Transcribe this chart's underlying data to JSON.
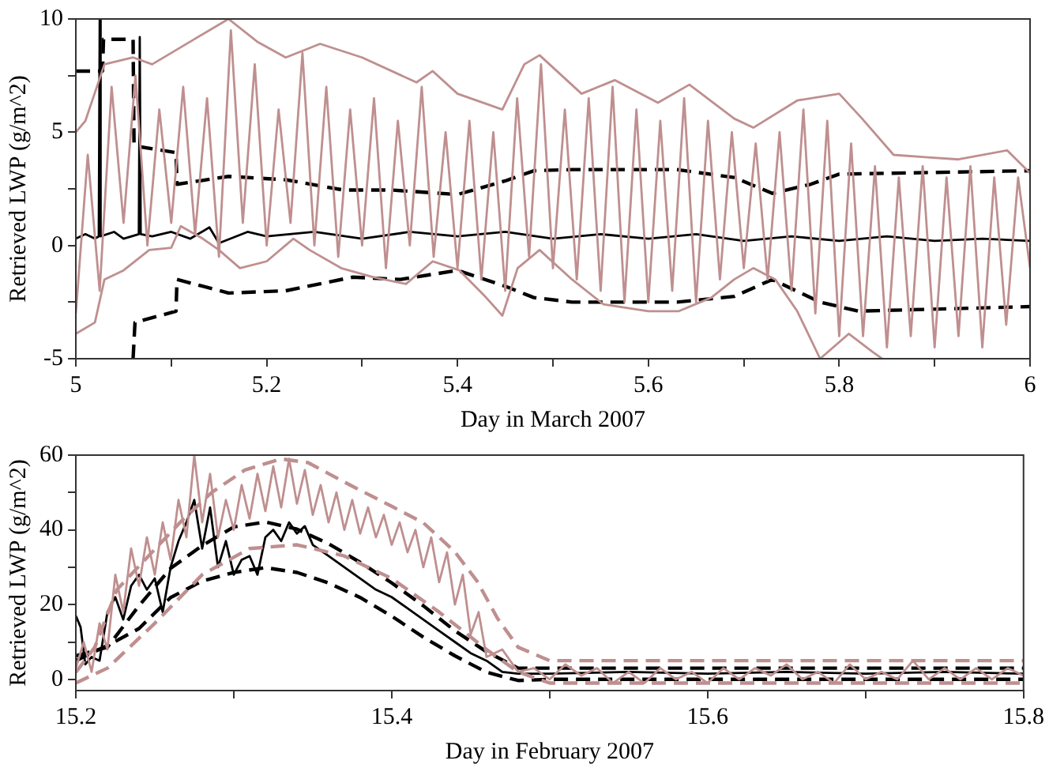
{
  "chart_data": [
    {
      "type": "line",
      "xlabel": "Day in March 2007",
      "ylabel": "Retrieved LWP (g/m^2)",
      "xlim": [
        5,
        6
      ],
      "ylim": [
        -5,
        10
      ],
      "xticks": [
        5,
        {
          "value": 5.1,
          "label": null
        },
        5.2,
        {
          "value": 5.3,
          "label": null
        },
        5.4,
        {
          "value": 5.5,
          "label": null
        },
        5.6,
        {
          "value": 5.7,
          "label": null
        },
        5.8,
        {
          "value": 5.9,
          "label": null
        },
        6
      ],
      "yticks": [
        -5,
        {
          "value": -2.5,
          "label": null
        },
        0,
        {
          "value": 2.5,
          "label": null
        },
        5,
        {
          "value": 7.5,
          "label": null
        },
        10
      ],
      "grid": false,
      "legend": false,
      "marker": "none",
      "series": [
        {
          "color": "#bf8f8f",
          "line_style": "solid",
          "x": [
            5.0,
            5.0125,
            5.025,
            5.0375,
            5.05,
            5.0625,
            5.075,
            5.0875,
            5.1,
            5.1125,
            5.125,
            5.1375,
            5.15,
            5.1625,
            5.175,
            5.1875,
            5.2,
            5.2125,
            5.225,
            5.2375,
            5.25,
            5.2625,
            5.275,
            5.2875,
            5.3,
            5.3125,
            5.325,
            5.3375,
            5.35,
            5.3625,
            5.375,
            5.3875,
            5.4,
            5.4125,
            5.425,
            5.4375,
            5.45,
            5.4625,
            5.475,
            5.4875,
            5.5,
            5.5125,
            5.525,
            5.5375,
            5.55,
            5.5625,
            5.575,
            5.5875,
            5.6,
            5.6125,
            5.625,
            5.6375,
            5.65,
            5.6625,
            5.675,
            5.6875,
            5.7,
            5.7125,
            5.725,
            5.7375,
            5.75,
            5.7625,
            5.775,
            5.7875,
            5.8,
            5.8125,
            5.825,
            5.8375,
            5.85,
            5.8625,
            5.875,
            5.8875,
            5.9,
            5.9125,
            5.925,
            5.9375,
            5.95,
            5.9625,
            5.975,
            5.9875,
            6.0
          ],
          "values": [
            -3,
            4,
            -2,
            7,
            1,
            7.5,
            0,
            6,
            1,
            7,
            0.5,
            6.5,
            -0.5,
            9.5,
            1,
            8,
            0,
            6,
            1,
            8.5,
            0,
            7,
            -0.5,
            6,
            0,
            6.5,
            -1,
            5.5,
            0,
            7,
            -0.5,
            5,
            -1,
            5.5,
            -1.5,
            5,
            -2,
            6.5,
            -0.5,
            8,
            -1,
            6,
            -1.5,
            6.5,
            -2,
            7,
            -2.5,
            6,
            -2.5,
            5.5,
            -2,
            6.5,
            -2.5,
            5.5,
            -1.5,
            5,
            -1,
            4.5,
            -1.5,
            5,
            -2,
            6,
            -3,
            5.5,
            -4,
            4.5,
            -4,
            3.5,
            -4.5,
            3,
            -4,
            3.5,
            -4.5,
            3,
            -4,
            3.5,
            -4.5,
            3,
            -3.5,
            3,
            -1
          ]
        },
        {
          "color": "#bf8f8f",
          "line_style": "solid",
          "x": [
            5.0,
            5.01,
            5.03,
            5.06,
            5.08,
            5.12,
            5.16,
            5.19,
            5.22,
            5.256,
            5.3,
            5.357,
            5.374,
            5.4,
            5.447,
            5.47,
            5.486,
            5.53,
            5.565,
            5.61,
            5.643,
            5.69,
            5.71,
            5.756,
            5.8,
            5.824,
            5.857,
            5.89,
            5.925,
            5.976,
            6.0
          ],
          "values": [
            5,
            5.5,
            8,
            8.3,
            8,
            9,
            10,
            9,
            8.3,
            8.9,
            8.3,
            7.2,
            7.7,
            6.7,
            6.0,
            8.0,
            8.4,
            6.7,
            7.3,
            6.3,
            7.1,
            5.6,
            5.2,
            6.4,
            6.7,
            5.6,
            4.0,
            3.9,
            3.8,
            4.2,
            3.2
          ]
        },
        {
          "color": "#bf8f8f",
          "line_style": "solid",
          "x": [
            5.0,
            5.02,
            5.03,
            5.05,
            5.077,
            5.1,
            5.11,
            5.133,
            5.15,
            5.172,
            5.2,
            5.228,
            5.245,
            5.278,
            5.312,
            5.346,
            5.374,
            5.402,
            5.43,
            5.447,
            5.463,
            5.486,
            5.52,
            5.553,
            5.6,
            5.632,
            5.666,
            5.69,
            5.71,
            5.733,
            5.756,
            5.78,
            5.81,
            5.835,
            5.845
          ],
          "values": [
            -3.9,
            -3.4,
            -1.5,
            -1.1,
            -0.2,
            -0.1,
            0.85,
            0.3,
            -0.2,
            -1.0,
            -0.7,
            0.3,
            -0.2,
            -1.0,
            -1.4,
            -1.7,
            -0.7,
            -1.1,
            -2.3,
            -3.1,
            -1.0,
            -0.2,
            -1.5,
            -2.6,
            -2.9,
            -2.9,
            -2.3,
            -1.5,
            -1.0,
            -1.5,
            -2.9,
            -5,
            -3.9,
            -4.7,
            -5
          ]
        },
        {
          "color": "#000000",
          "line_style": "dashed",
          "x": [
            5.0,
            5.028,
            5.029,
            5.06,
            5.061,
            5.105,
            5.106,
            5.16,
            5.22,
            5.28,
            5.33,
            5.4,
            5.45,
            5.48,
            5.52,
            5.63,
            5.69,
            5.73,
            5.77,
            5.8,
            6.0
          ],
          "values": [
            7.7,
            7.7,
            9.1,
            9.1,
            4.4,
            4.1,
            2.7,
            3.05,
            2.9,
            2.45,
            2.45,
            2.25,
            2.85,
            3.3,
            3.35,
            3.35,
            3.0,
            2.3,
            2.7,
            3.15,
            3.3
          ]
        },
        {
          "color": "#000000",
          "line_style": "dashed",
          "x": [
            5.06,
            5.062,
            5.105,
            5.106,
            5.16,
            5.22,
            5.29,
            5.34,
            5.4,
            5.45,
            5.48,
            5.52,
            5.63,
            5.69,
            5.73,
            5.78,
            5.82,
            6.0
          ],
          "values": [
            -5,
            -3.4,
            -2.9,
            -1.5,
            -2.1,
            -2.0,
            -1.4,
            -1.5,
            -1.1,
            -1.8,
            -2.3,
            -2.5,
            -2.5,
            -2.25,
            -1.5,
            -2.5,
            -2.9,
            -2.7
          ]
        },
        {
          "color": "#000000",
          "line_style": "solid",
          "x": [
            5.0,
            5.01,
            5.02,
            5.024,
            5.025,
            5.026,
            5.04,
            5.05,
            5.066,
            5.067,
            5.068,
            5.08,
            5.1,
            5.12,
            5.14,
            5.15,
            5.18,
            5.2,
            5.25,
            5.3,
            5.35,
            5.4,
            5.45,
            5.5,
            5.55,
            5.6,
            5.65,
            5.7,
            5.75,
            5.8,
            5.85,
            5.9,
            5.95,
            6.0
          ],
          "values": [
            0.3,
            0.5,
            0.3,
            0.4,
            10,
            0.4,
            0.6,
            0.3,
            0.5,
            9.2,
            0.5,
            0.4,
            0.6,
            0.3,
            0.8,
            0.1,
            0.6,
            0.4,
            0.6,
            0.3,
            0.6,
            0.4,
            0.6,
            0.3,
            0.5,
            0.3,
            0.5,
            0.2,
            0.4,
            0.2,
            0.4,
            0.2,
            0.3,
            0.2
          ]
        }
      ]
    },
    {
      "type": "line",
      "xlabel": "Day in February 2007",
      "ylabel": "Retrieved LWP (g/m^2)",
      "xlim": [
        15.2,
        15.8
      ],
      "ylim": [
        -3,
        60
      ],
      "xticks": [
        15.2,
        {
          "value": 15.3,
          "label": null
        },
        15.4,
        {
          "value": 15.5,
          "label": null
        },
        15.6,
        {
          "value": 15.7,
          "label": null
        },
        15.8
      ],
      "yticks": [
        0,
        {
          "value": 10,
          "label": null
        },
        20,
        {
          "value": 30,
          "label": null
        },
        40,
        {
          "value": 50,
          "label": null
        },
        60
      ],
      "grid": false,
      "legend": false,
      "marker": "none",
      "series": [
        {
          "color": "#bf8f8f",
          "line_style": "solid",
          "x": [
            15.2,
            15.205,
            15.21,
            15.215,
            15.22,
            15.225,
            15.23,
            15.235,
            15.24,
            15.245,
            15.25,
            15.255,
            15.26,
            15.265,
            15.27,
            15.275,
            15.28,
            15.285,
            15.29,
            15.295,
            15.3,
            15.305,
            15.31,
            15.315,
            15.32,
            15.325,
            15.33,
            15.335,
            15.34,
            15.345,
            15.35,
            15.355,
            15.36,
            15.365,
            15.37,
            15.375,
            15.38,
            15.385,
            15.39,
            15.395,
            15.4,
            15.405,
            15.41,
            15.415,
            15.42,
            15.425,
            15.43,
            15.435,
            15.44,
            15.445,
            15.45,
            15.455,
            15.46,
            15.47,
            15.48,
            15.49,
            15.5,
            15.51,
            15.52,
            15.53,
            15.54,
            15.55,
            15.56,
            15.57,
            15.58,
            15.59,
            15.6,
            15.61,
            15.62,
            15.63,
            15.64,
            15.65,
            15.66,
            15.67,
            15.68,
            15.69,
            15.7,
            15.71,
            15.72,
            15.73,
            15.74,
            15.75,
            15.76,
            15.77,
            15.78,
            15.79,
            15.8
          ],
          "values": [
            3,
            10,
            2,
            15,
            8,
            28,
            18,
            35,
            25,
            38,
            28,
            42,
            32,
            48,
            38,
            60,
            42,
            55,
            38,
            48,
            40,
            52,
            43,
            55,
            45,
            57,
            46,
            59,
            47,
            56,
            44,
            52,
            42,
            50,
            40,
            48,
            39,
            46,
            38,
            44,
            36,
            42,
            34,
            40,
            30,
            38,
            26,
            34,
            20,
            28,
            12,
            18,
            6,
            8,
            2,
            3,
            0,
            4,
            1,
            3,
            -1,
            2,
            -1,
            3,
            0,
            2,
            -1,
            3,
            0,
            3,
            1,
            4,
            0,
            2,
            -1,
            4,
            0,
            2,
            0,
            5,
            0,
            3,
            0,
            3,
            0,
            3,
            1
          ]
        },
        {
          "color": "#bf8f8f",
          "line_style": "dashed",
          "x": [
            15.2,
            15.212,
            15.226,
            15.246,
            15.266,
            15.286,
            15.307,
            15.33,
            15.347,
            15.374,
            15.4,
            15.42,
            15.44,
            15.454,
            15.467,
            15.48,
            15.5,
            15.8
          ],
          "values": [
            1.9,
            8.6,
            24,
            33,
            42,
            50,
            56,
            59,
            58,
            51.9,
            46.3,
            41.9,
            34.1,
            26.3,
            16.3,
            8.6,
            5,
            5
          ]
        },
        {
          "color": "#bf8f8f",
          "line_style": "dashed",
          "x": [
            15.2,
            15.22,
            15.25,
            15.28,
            15.31,
            15.34,
            15.37,
            15.4,
            15.43,
            15.46,
            15.48,
            15.5,
            15.8
          ],
          "values": [
            -1,
            3,
            15,
            28,
            35,
            36,
            33,
            27,
            18,
            8,
            2,
            -1,
            -1
          ]
        },
        {
          "color": "#000000",
          "line_style": "dashed",
          "x": [
            15.2,
            15.22,
            15.24,
            15.26,
            15.28,
            15.3,
            15.32,
            15.34,
            15.36,
            15.38,
            15.4,
            15.42,
            15.44,
            15.46,
            15.48,
            15.5,
            15.8
          ],
          "values": [
            6.3,
            8.6,
            19.7,
            29.7,
            35.8,
            40.8,
            42.1,
            40.2,
            36.3,
            31.3,
            25.8,
            19.7,
            13,
            7.4,
            3,
            3,
            3
          ]
        },
        {
          "color": "#000000",
          "line_style": "dashed",
          "x": [
            15.2,
            15.223,
            15.24,
            15.26,
            15.28,
            15.3,
            15.32,
            15.34,
            15.36,
            15.38,
            15.4,
            15.42,
            15.44,
            15.46,
            15.48,
            15.5,
            15.8
          ],
          "values": [
            5,
            9.7,
            13.6,
            21.9,
            26.3,
            28.6,
            29.9,
            28.6,
            25.8,
            21.9,
            16.9,
            11.3,
            6.3,
            1.9,
            -0.3,
            0,
            0
          ]
        },
        {
          "color": "#000000",
          "line_style": "solid",
          "x": [
            15.2,
            15.203,
            15.206,
            15.21,
            15.215,
            15.22,
            15.225,
            15.23,
            15.235,
            15.24,
            15.245,
            15.25,
            15.255,
            15.26,
            15.265,
            15.27,
            15.275,
            15.28,
            15.285,
            15.29,
            15.295,
            15.3,
            15.305,
            15.31,
            15.315,
            15.32,
            15.325,
            15.33,
            15.335,
            15.34,
            15.345,
            15.35,
            15.36,
            15.37,
            15.38,
            15.39,
            15.4,
            15.41,
            15.42,
            15.43,
            15.44,
            15.45,
            15.46,
            15.47,
            15.48,
            15.5,
            15.55,
            15.6,
            15.65,
            15.7,
            15.75,
            15.8
          ],
          "values": [
            17,
            14,
            4,
            6,
            5,
            18,
            22,
            16,
            25,
            28,
            24,
            27,
            18,
            30,
            37,
            42,
            48,
            35,
            46,
            30,
            37,
            28,
            32,
            33,
            28,
            38,
            40,
            37,
            42,
            39,
            41,
            36,
            33,
            30,
            27,
            24,
            22,
            19,
            16,
            13,
            10,
            7,
            5,
            2,
            1.5,
            1.5,
            2,
            1.5,
            2,
            1.5,
            2,
            1.5
          ]
        }
      ]
    }
  ]
}
